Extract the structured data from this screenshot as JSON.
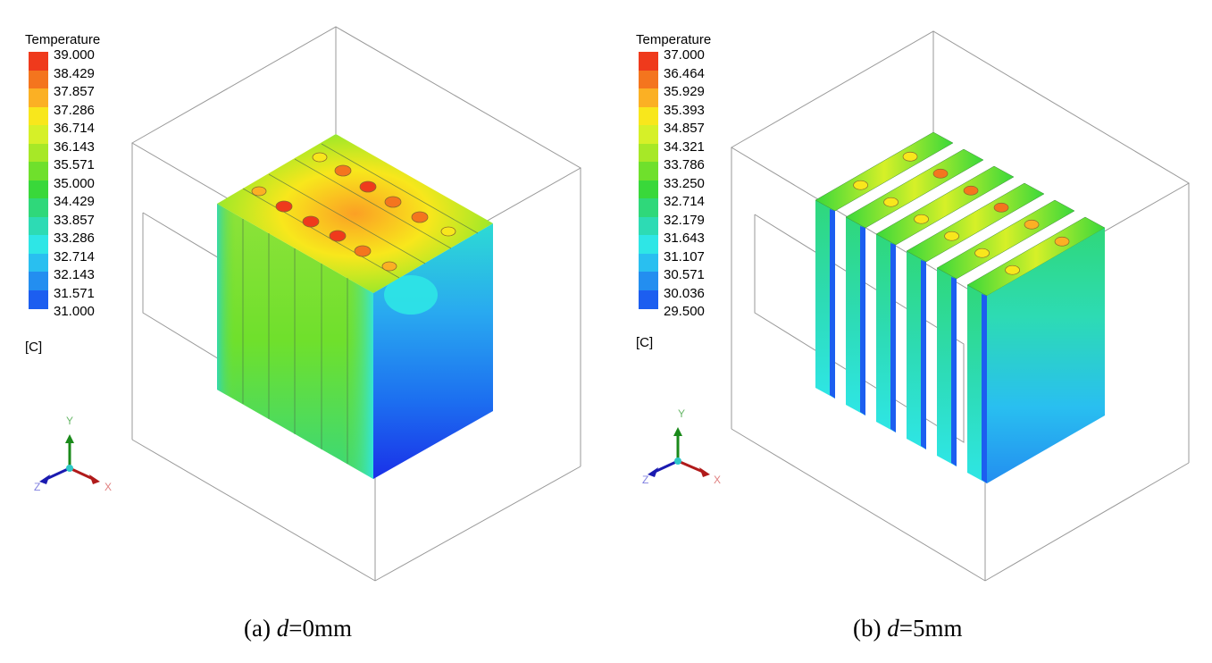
{
  "panels": [
    {
      "caption_prefix": "(a)",
      "caption_var": "d",
      "caption_value": "=0mm",
      "legend": {
        "title": "Temperature",
        "unit": "[C]",
        "ticks": [
          "39.000",
          "38.429",
          "37.857",
          "37.286",
          "36.714",
          "36.143",
          "35.571",
          "35.000",
          "34.429",
          "33.857",
          "33.286",
          "32.714",
          "32.143",
          "31.571",
          "31.000"
        ],
        "colors": [
          "#ef3a1c",
          "#f4751e",
          "#fbb024",
          "#f8e71c",
          "#d6f028",
          "#a7e827",
          "#6fe02c",
          "#39d83a",
          "#2fd87a",
          "#2ddbb4",
          "#2ee6e6",
          "#29bff0",
          "#238ef0",
          "#1c5ef0",
          "#1a30e8"
        ]
      },
      "axis_labels": {
        "y": "Y",
        "x": "X",
        "z": "Z"
      }
    },
    {
      "caption_prefix": "(b)",
      "caption_var": "d",
      "caption_value": "=5mm",
      "legend": {
        "title": "Temperature",
        "unit": "[C]",
        "ticks": [
          "37.000",
          "36.464",
          "35.929",
          "35.393",
          "34.857",
          "34.321",
          "33.786",
          "33.250",
          "32.714",
          "32.179",
          "31.643",
          "31.107",
          "30.571",
          "30.036",
          "29.500"
        ],
        "colors": [
          "#ef3a1c",
          "#f4751e",
          "#fbb024",
          "#f8e71c",
          "#d6f028",
          "#a7e827",
          "#6fe02c",
          "#39d83a",
          "#2fd87a",
          "#2ddbb4",
          "#2ee6e6",
          "#29bff0",
          "#238ef0",
          "#1c5ef0",
          "#1a30e8"
        ]
      },
      "axis_labels": {
        "y": "Y",
        "x": "X",
        "z": "Z"
      }
    }
  ]
}
